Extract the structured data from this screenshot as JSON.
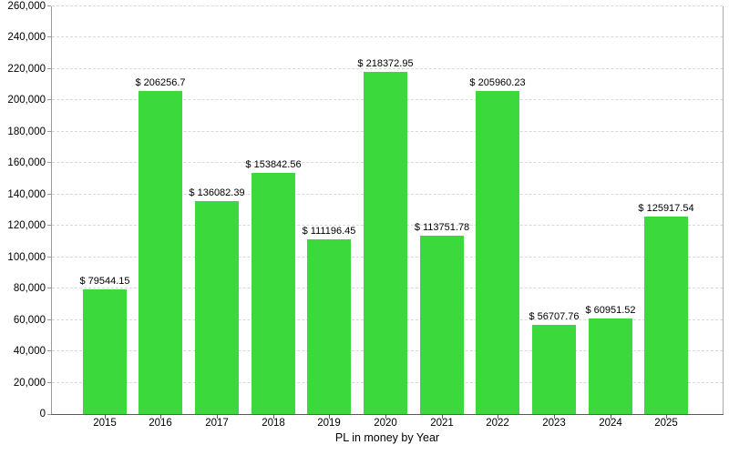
{
  "chart_data": {
    "type": "bar",
    "title": "",
    "xlabel": "PL in money by Year",
    "ylabel": "",
    "categories": [
      "2015",
      "2016",
      "2017",
      "2018",
      "2019",
      "2020",
      "2021",
      "2022",
      "2023",
      "2024",
      "2025"
    ],
    "values": [
      79544.15,
      206256.7,
      136082.39,
      153842.56,
      111196.45,
      218372.95,
      113751.78,
      205960.23,
      56707.76,
      60951.52,
      125917.54
    ],
    "bar_labels": [
      "$ 79544.15",
      "$ 206256.7",
      "$ 136082.39",
      "$ 153842.56",
      "$ 111196.45",
      "$ 218372.95",
      "$ 113751.78",
      "$ 205960.23",
      "$ 56707.76",
      "$ 60951.52",
      "$ 125917.54"
    ],
    "ylim": [
      0,
      260000
    ],
    "y_ticks": [
      {
        "value": 0,
        "label": "0"
      },
      {
        "value": 20000,
        "label": "20,000"
      },
      {
        "value": 40000,
        "label": "40,000"
      },
      {
        "value": 60000,
        "label": "60,000"
      },
      {
        "value": 80000,
        "label": "80,000"
      },
      {
        "value": 100000,
        "label": "100,000"
      },
      {
        "value": 120000,
        "label": "120,000"
      },
      {
        "value": 140000,
        "label": "140,000"
      },
      {
        "value": 160000,
        "label": "160,000"
      },
      {
        "value": 180000,
        "label": "180,000"
      },
      {
        "value": 200000,
        "label": "200,000"
      },
      {
        "value": 220000,
        "label": "220,000"
      },
      {
        "value": 240000,
        "label": "240,000"
      },
      {
        "value": 260000,
        "label": "260,000"
      }
    ],
    "grid": "horizontal-dashed",
    "legend": "none",
    "bar_color": "#3cd93c"
  },
  "colors": {
    "background": "#ffffff",
    "bar": "#3cd93c",
    "gridline": "#d9d9d9",
    "y_axis_line": "#999999",
    "x_axis_line": "#5a5a5a",
    "plot_border_right": "#aaaaaa",
    "text": "#000000"
  }
}
